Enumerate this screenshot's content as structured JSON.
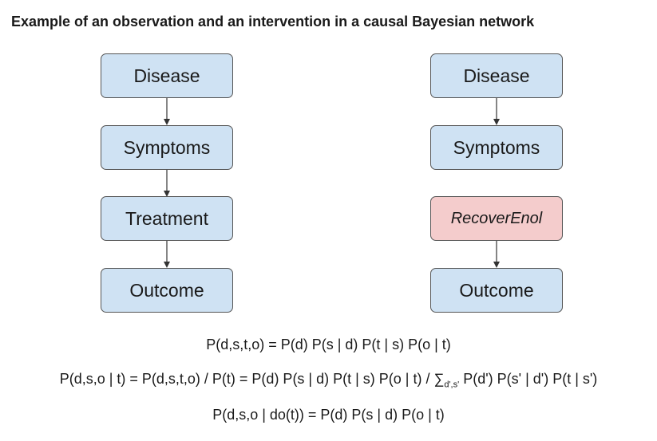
{
  "title": "Example of an observation and an intervention in a causal Bayesian network",
  "left_network": {
    "nodes": [
      "Disease",
      "Symptoms",
      "Treatment",
      "Outcome"
    ]
  },
  "right_network": {
    "nodes": [
      "Disease",
      "Symptoms",
      "RecoverEnol",
      "Outcome"
    ]
  },
  "colors": {
    "node_fill": "#cfe2f3",
    "intervened_fill": "#f4cccc",
    "border": "#555555"
  },
  "formulas": {
    "joint": "P(d,s,t,o) = P(d) P(s | d) P(t | s) P(o | t)",
    "observation_main": "P(d,s,o | t) = P(d,s,t,o) / P(t) = P(d) P(s | d) P(t | s) P(o | t) / ∑",
    "observation_sub": "d',s'",
    "observation_tail": " P(d') P(s' | d') P(t | s')",
    "intervention": "P(d,s,o | do(t)) = P(d) P(s | d) P(o | t)"
  }
}
